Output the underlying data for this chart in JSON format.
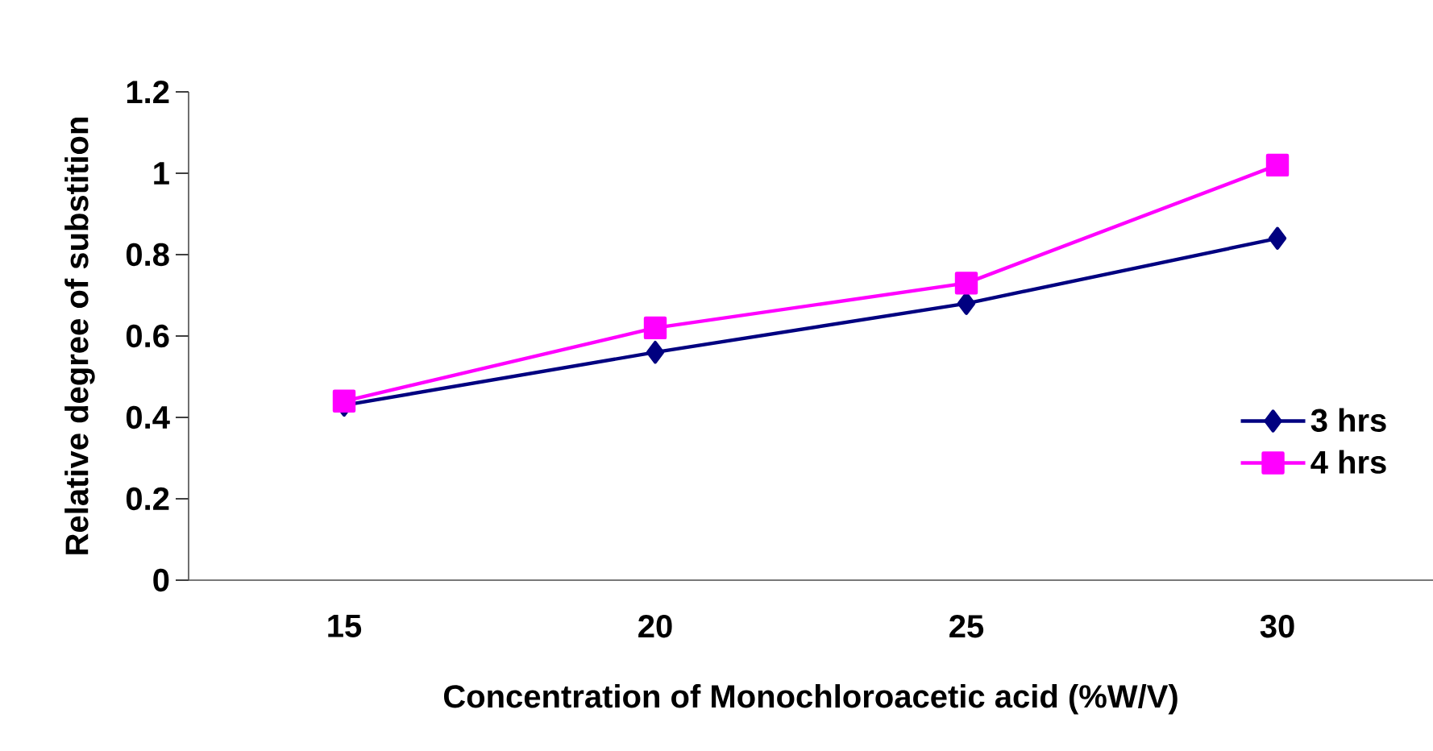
{
  "chart_data": {
    "type": "line",
    "xlabel": "Concentration of Monochloroacetic acid (%W/V)",
    "ylabel": "Relative degree of substition",
    "categories": [
      "15",
      "20",
      "25",
      "30"
    ],
    "series": [
      {
        "name": "3 hrs",
        "color": "#000080",
        "marker": "diamond",
        "values": [
          0.43,
          0.56,
          0.68,
          0.84
        ]
      },
      {
        "name": "4 hrs",
        "color": "#ff00ff",
        "marker": "square",
        "values": [
          0.44,
          0.62,
          0.73,
          1.02
        ]
      }
    ],
    "ylim": [
      0,
      1.2
    ],
    "yticks": [
      0,
      0.2,
      0.4,
      0.6,
      0.8,
      1,
      1.2
    ],
    "grid": false,
    "legend": "bottom right",
    "line_style": "solid"
  }
}
